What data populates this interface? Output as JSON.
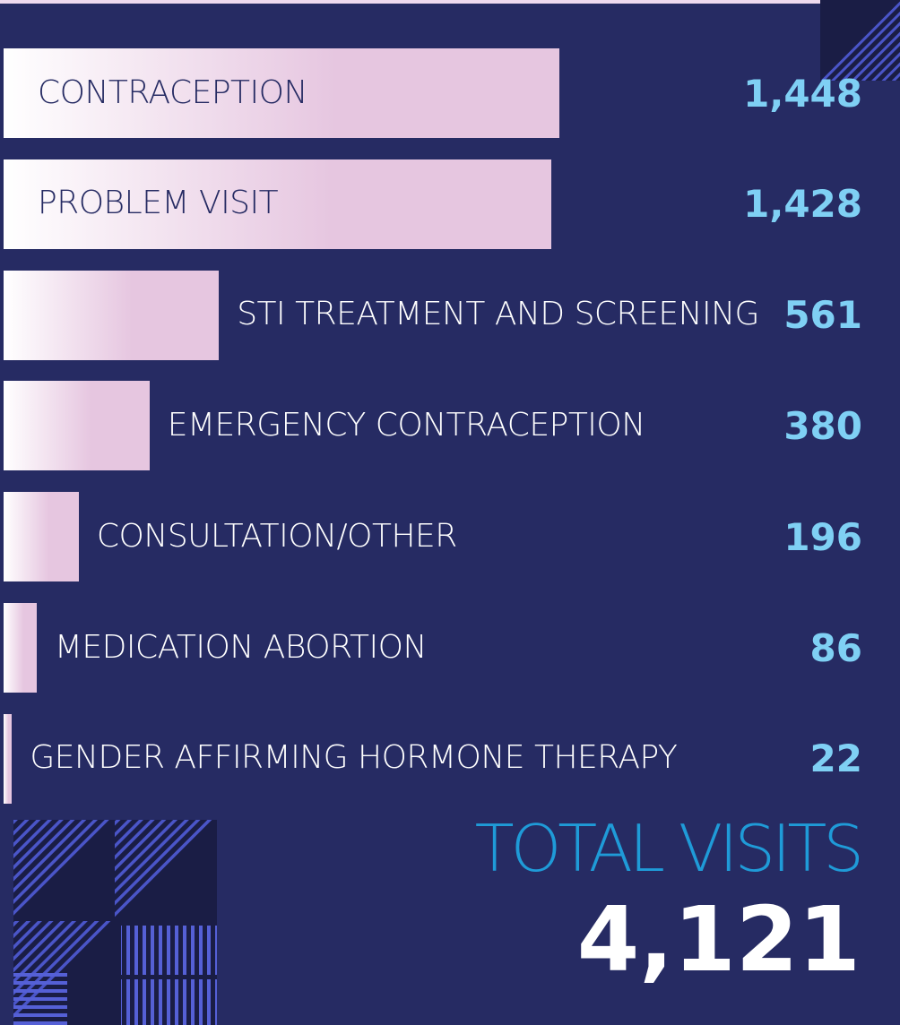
{
  "chart_data": {
    "type": "bar",
    "orientation": "horizontal",
    "categories": [
      "CONTRACEPTION",
      "PROBLEM VISIT",
      "STI TREATMENT AND SCREENING",
      "EMERGENCY CONTRACEPTION",
      "CONSULTATION/OTHER",
      "MEDICATION ABORTION",
      "GENDER AFFIRMING HORMONE THERAPY"
    ],
    "values": [
      1448,
      1428,
      561,
      380,
      196,
      86,
      22
    ],
    "value_labels": [
      "1,448",
      "1,428",
      "561",
      "380",
      "196",
      "86",
      "22"
    ],
    "color": "#e6c6e0",
    "total_title": "TOTAL VISITS",
    "total": {
      "value": 4121,
      "label": "4,121"
    }
  }
}
